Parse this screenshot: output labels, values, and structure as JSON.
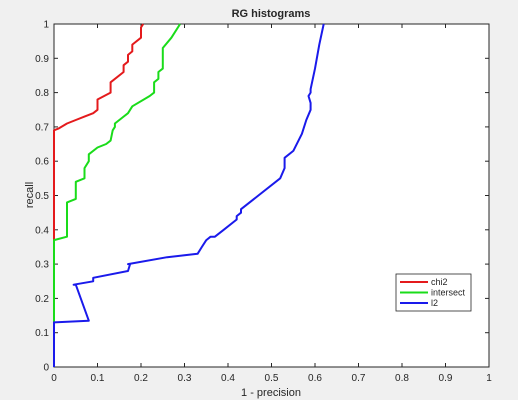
{
  "chart_data": {
    "type": "line",
    "title": "RG histograms",
    "xlabel": "1 - precision",
    "ylabel": "recall",
    "xlim": [
      0,
      1
    ],
    "ylim": [
      0,
      1
    ],
    "xticks": [
      0,
      0.1,
      0.2,
      0.3,
      0.4,
      0.5,
      0.6,
      0.7,
      0.8,
      0.9,
      1
    ],
    "yticks": [
      0,
      0.1,
      0.2,
      0.3,
      0.4,
      0.5,
      0.6,
      0.7,
      0.8,
      0.9,
      1
    ],
    "xtick_labels": [
      "0",
      "0.1",
      "0.2",
      "0.3",
      "0.4",
      "0.5",
      "0.6",
      "0.7",
      "0.8",
      "0.9",
      "1"
    ],
    "ytick_labels": [
      "0",
      "0.1",
      "0.2",
      "0.3",
      "0.4",
      "0.5",
      "0.6",
      "0.7",
      "0.8",
      "0.9",
      "1"
    ],
    "grid": false,
    "legend_position": "bottom-right",
    "series": [
      {
        "name": "chi2",
        "color": "#e41a1c",
        "x": [
          0,
          0,
          0.01,
          0.03,
          0.05,
          0.07,
          0.09,
          0.1,
          0.1,
          0.13,
          0.13,
          0.16,
          0.16,
          0.17,
          0.17,
          0.18,
          0.18,
          0.2,
          0.2,
          0.205
        ],
        "y": [
          0,
          0.69,
          0.695,
          0.71,
          0.72,
          0.73,
          0.74,
          0.75,
          0.78,
          0.8,
          0.83,
          0.86,
          0.88,
          0.89,
          0.91,
          0.92,
          0.94,
          0.96,
          0.99,
          1.0
        ]
      },
      {
        "name": "intersect",
        "color": "#1adc1a",
        "x": [
          0,
          0,
          0.03,
          0.03,
          0.05,
          0.05,
          0.07,
          0.07,
          0.08,
          0.08,
          0.1,
          0.12,
          0.13,
          0.135,
          0.14,
          0.14,
          0.16,
          0.17,
          0.18,
          0.22,
          0.23,
          0.23,
          0.24,
          0.24,
          0.25,
          0.25,
          0.27,
          0.29
        ],
        "y": [
          0,
          0.37,
          0.38,
          0.48,
          0.49,
          0.54,
          0.55,
          0.58,
          0.6,
          0.62,
          0.64,
          0.65,
          0.66,
          0.69,
          0.7,
          0.71,
          0.73,
          0.74,
          0.76,
          0.79,
          0.8,
          0.83,
          0.84,
          0.86,
          0.87,
          0.93,
          0.96,
          1.0
        ]
      },
      {
        "name": "l2",
        "color": "#1a1aeb",
        "x": [
          0,
          0,
          0.08,
          0.05,
          0.045,
          0.09,
          0.09,
          0.17,
          0.175,
          0.17,
          0.26,
          0.33,
          0.34,
          0.35,
          0.36,
          0.37,
          0.39,
          0.42,
          0.42,
          0.43,
          0.43,
          0.47,
          0.52,
          0.53,
          0.53,
          0.55,
          0.57,
          0.58,
          0.59,
          0.59,
          0.585,
          0.59,
          0.59,
          0.6,
          0.61,
          0.62
        ],
        "y": [
          0,
          0.13,
          0.135,
          0.24,
          0.24,
          0.25,
          0.26,
          0.28,
          0.3,
          0.3,
          0.32,
          0.33,
          0.35,
          0.37,
          0.38,
          0.38,
          0.4,
          0.43,
          0.44,
          0.45,
          0.46,
          0.5,
          0.55,
          0.58,
          0.61,
          0.63,
          0.68,
          0.72,
          0.75,
          0.77,
          0.79,
          0.8,
          0.81,
          0.87,
          0.94,
          1.0
        ]
      }
    ]
  }
}
